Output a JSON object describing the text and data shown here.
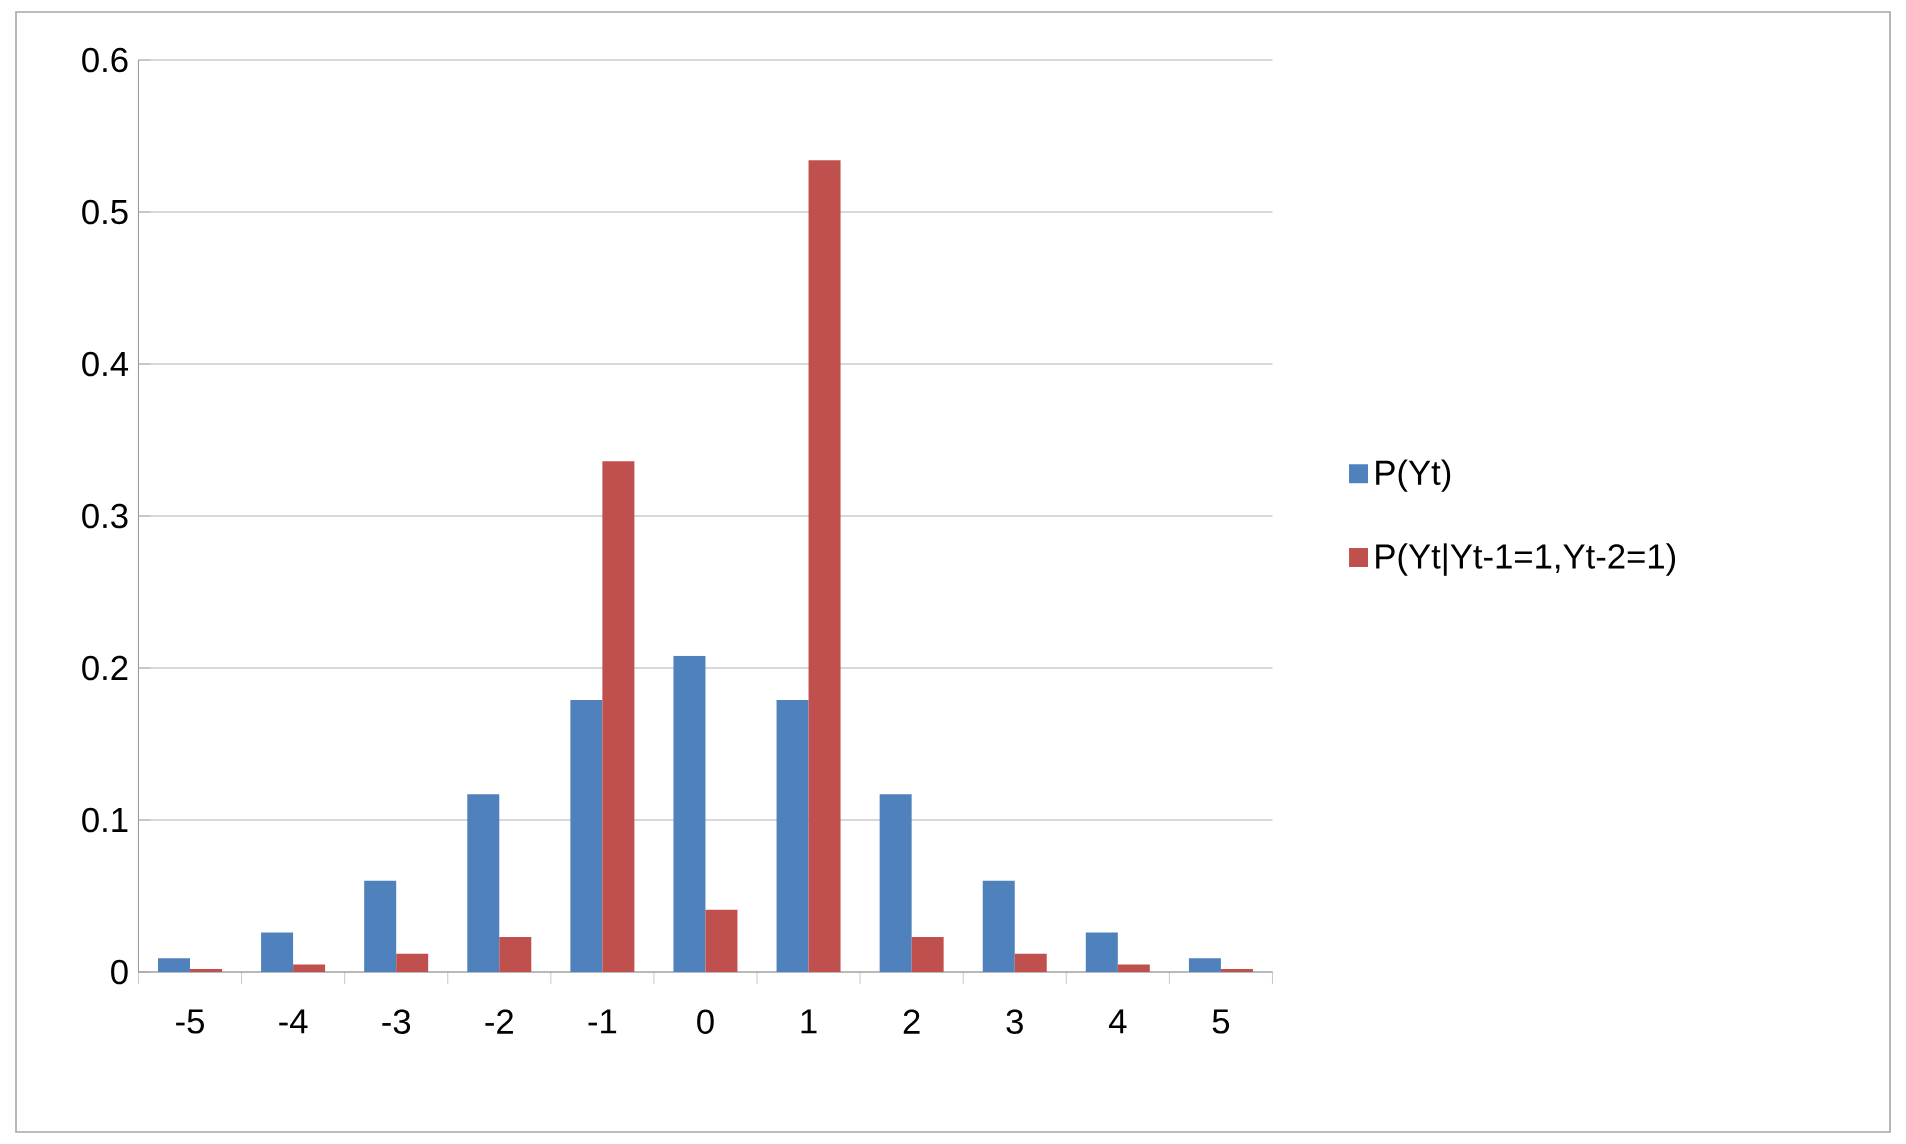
{
  "chart_data": {
    "type": "bar",
    "categories": [
      "-5",
      "-4",
      "-3",
      "-2",
      "-1",
      "0",
      "1",
      "2",
      "3",
      "4",
      "5"
    ],
    "series": [
      {
        "name": "P(Yt)",
        "color": "#4f81bd",
        "values": [
          0.009,
          0.026,
          0.06,
          0.117,
          0.179,
          0.208,
          0.179,
          0.117,
          0.06,
          0.026,
          0.009
        ]
      },
      {
        "name": "P(Yt|Yt-1=1,Yt-2=1)",
        "color": "#c0504d",
        "values": [
          0.002,
          0.005,
          0.012,
          0.023,
          0.336,
          0.041,
          0.534,
          0.023,
          0.012,
          0.005,
          0.002
        ]
      }
    ],
    "ylim": [
      0,
      0.6
    ],
    "yticks": [
      0,
      0.1,
      0.2,
      0.3,
      0.4,
      0.5,
      0.6
    ],
    "grid": "y",
    "legend": "right"
  }
}
